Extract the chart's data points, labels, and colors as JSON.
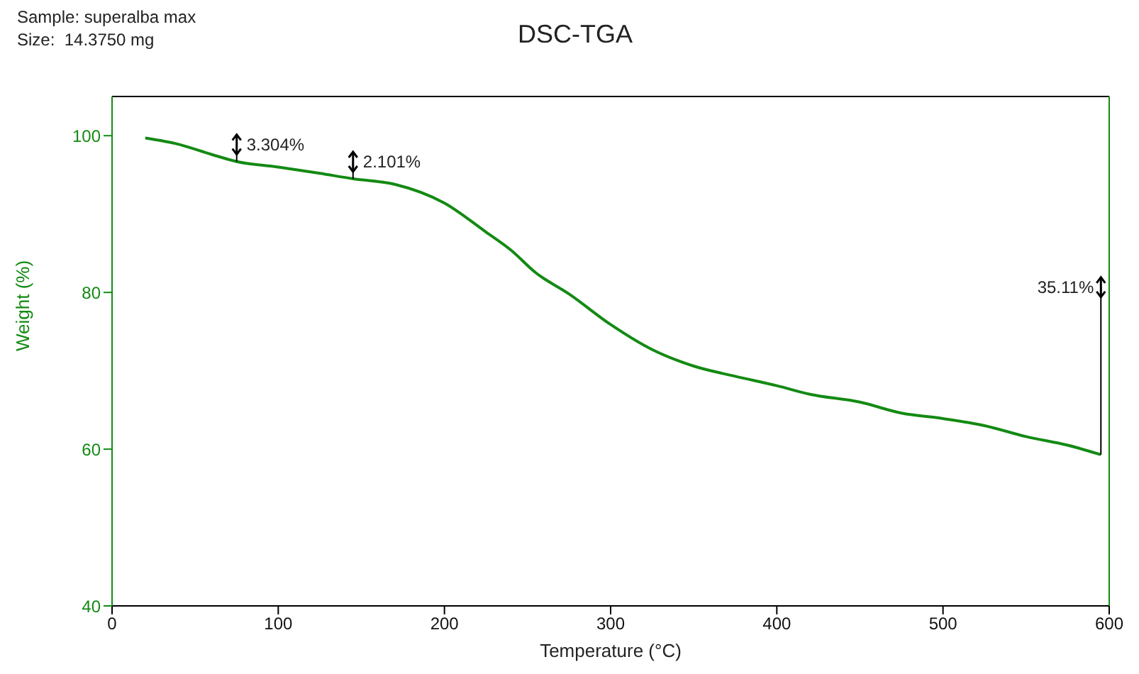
{
  "chart_data": {
    "type": "line",
    "title": "DSC-TGA",
    "xlabel": "Temperature (°C)",
    "ylabel": "Weight (%)",
    "annotations": [
      "Sample: superalba max",
      "Size:  14.3750 mg",
      {
        "text": "3.304%",
        "x": 75,
        "y": 96.7
      },
      {
        "text": "2.101%",
        "x": 145,
        "y": 94.5
      },
      {
        "text": "35.11%",
        "x": 595,
        "y": 59.3
      }
    ],
    "series": [
      {
        "color": "#138a13",
        "x": [
          20,
          40,
          60,
          75,
          100,
          125,
          145,
          170,
          200,
          225,
          240,
          255,
          275,
          300,
          325,
          350,
          375,
          400,
          420,
          450,
          475,
          500,
          525,
          550,
          575,
          595
        ],
        "values": [
          99.7,
          98.9,
          97.6,
          96.7,
          96.0,
          95.2,
          94.5,
          93.8,
          91.4,
          87.7,
          85.4,
          82.5,
          79.8,
          75.9,
          72.7,
          70.6,
          69.3,
          68.1,
          67.0,
          66.0,
          64.6,
          63.9,
          63.0,
          61.6,
          60.5,
          59.3
        ]
      }
    ],
    "xlim": [
      0,
      600
    ],
    "xticks": [
      0,
      100,
      200,
      300,
      400,
      500,
      600
    ],
    "ylim": [
      40,
      105
    ],
    "yticks": [
      40,
      60,
      80,
      100
    ],
    "legend": false,
    "marker": "none",
    "line_style": "solid"
  }
}
